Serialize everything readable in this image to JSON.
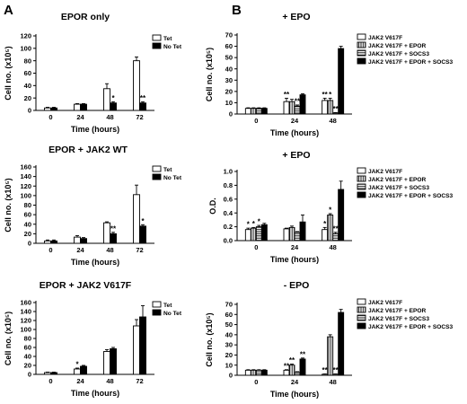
{
  "panels": [
    {
      "letter": "A"
    },
    {
      "letter": "B"
    }
  ],
  "chart_data": [
    {
      "type": "bar",
      "title": "EPOR only",
      "xlabel": "Time (hours)",
      "ylabel": "Cell no. (x10⁵)",
      "categories": [
        "0",
        "24",
        "48",
        "72"
      ],
      "ylim": [
        0,
        120
      ],
      "yticks": [
        0,
        20,
        40,
        60,
        80,
        100,
        120
      ],
      "legend_position": "top-right",
      "series": [
        {
          "name": "Tet",
          "values": [
            4,
            10,
            35,
            80
          ],
          "errors": [
            1,
            1,
            8,
            6
          ],
          "significance": [
            "",
            "",
            "",
            ""
          ]
        },
        {
          "name": "No Tet",
          "values": [
            4,
            10,
            12,
            12
          ],
          "errors": [
            1,
            1,
            2,
            2
          ],
          "significance": [
            "",
            "",
            "*",
            "**"
          ]
        }
      ]
    },
    {
      "type": "bar",
      "title": "EPOR + JAK2 WT",
      "xlabel": "Time (hours)",
      "ylabel": "Cell no. (x10⁵)",
      "categories": [
        "0",
        "24",
        "48",
        "72"
      ],
      "ylim": [
        0,
        160
      ],
      "yticks": [
        0,
        20,
        40,
        60,
        80,
        100,
        120,
        140,
        160
      ],
      "legend_position": "top-right",
      "series": [
        {
          "name": "Tet",
          "values": [
            5,
            13,
            43,
            102
          ],
          "errors": [
            2,
            3,
            2,
            20
          ],
          "significance": [
            "",
            "",
            "",
            ""
          ]
        },
        {
          "name": "No Tet",
          "values": [
            5,
            10,
            20,
            36
          ],
          "errors": [
            2,
            2,
            3,
            3
          ],
          "significance": [
            "",
            "",
            "**",
            "*"
          ]
        }
      ]
    },
    {
      "type": "bar",
      "title": "EPOR + JAK2 V617F",
      "xlabel": "Time (hours)",
      "ylabel": "Cell no. (x10⁵)",
      "categories": [
        "0",
        "24",
        "48",
        "72"
      ],
      "ylim": [
        0,
        160
      ],
      "yticks": [
        0,
        20,
        40,
        60,
        80,
        100,
        120,
        140,
        160
      ],
      "legend_position": "top-right",
      "series": [
        {
          "name": "Tet",
          "values": [
            4,
            12,
            51,
            108
          ],
          "errors": [
            1,
            2,
            4,
            14
          ],
          "significance": [
            "",
            "*",
            "",
            ""
          ]
        },
        {
          "name": "No Tet",
          "values": [
            4,
            18,
            57,
            128
          ],
          "errors": [
            1,
            2,
            3,
            25
          ],
          "significance": [
            "",
            "",
            "",
            ""
          ]
        }
      ]
    },
    {
      "type": "bar",
      "title": "+ EPO",
      "xlabel": "Time (hours)",
      "ylabel": "Cell no. (x10⁵)",
      "categories": [
        "0",
        "24",
        "48"
      ],
      "ylim": [
        0,
        70
      ],
      "yticks": [
        0,
        10,
        20,
        30,
        40,
        50,
        60,
        70
      ],
      "legend_position": "top-right",
      "series": [
        {
          "name": "JAK2 V617F",
          "values": [
            5,
            11,
            12
          ],
          "errors": [
            0.5,
            3,
            2
          ],
          "significance": [
            "",
            "**",
            "**"
          ]
        },
        {
          "name": "JAK2 V617F + EPOR",
          "values": [
            5,
            11,
            12
          ],
          "errors": [
            0.5,
            2,
            2
          ],
          "significance": [
            "",
            "",
            "*"
          ]
        },
        {
          "name": "JAK2 V617F + SOCS3",
          "values": [
            5,
            7,
            1
          ],
          "errors": [
            0.5,
            1,
            0.3
          ],
          "significance": [
            "",
            "**",
            "**"
          ]
        },
        {
          "name": "JAK2 V617F + EPOR + SOCS3",
          "values": [
            5,
            17,
            58
          ],
          "errors": [
            0.5,
            1,
            2
          ],
          "significance": [
            "",
            "",
            ""
          ]
        }
      ]
    },
    {
      "type": "bar",
      "title": "+ EPO",
      "xlabel": "Time (hours)",
      "ylabel": "O.D.",
      "categories": [
        "0",
        "24",
        "48"
      ],
      "ylim": [
        0,
        1.0
      ],
      "yticks": [
        0.0,
        0.2,
        0.4,
        0.6,
        0.8,
        1.0
      ],
      "yticklabels": [
        "0.0",
        "0.2",
        "0.4",
        "0.6",
        "0.8",
        "1.0"
      ],
      "legend_position": "top-right",
      "series": [
        {
          "name": "JAK2 V617F",
          "values": [
            0.16,
            0.17,
            0.16
          ],
          "errors": [
            0.02,
            0.01,
            0.03
          ],
          "significance": [
            "*",
            "",
            "*"
          ]
        },
        {
          "name": "JAK2 V617F + EPOR",
          "values": [
            0.18,
            0.19,
            0.37
          ],
          "errors": [
            0.01,
            0.02,
            0.02
          ],
          "significance": [
            "*",
            "",
            "*"
          ]
        },
        {
          "name": "JAK2 V617F + SOCS3",
          "values": [
            0.2,
            0.12,
            0.1
          ],
          "errors": [
            0.02,
            0.01,
            0.02
          ],
          "significance": [
            "*",
            "",
            "**"
          ]
        },
        {
          "name": "JAK2 V617F + EPOR + SOCS3",
          "values": [
            0.23,
            0.27,
            0.74
          ],
          "errors": [
            0.02,
            0.1,
            0.12
          ],
          "significance": [
            "",
            "",
            ""
          ]
        }
      ]
    },
    {
      "type": "bar",
      "title": "- EPO",
      "xlabel": "Time (hours)",
      "ylabel": "Cell no. (x10⁵)",
      "categories": [
        "0",
        "24",
        "48"
      ],
      "ylim": [
        0,
        70
      ],
      "yticks": [
        0,
        10,
        20,
        30,
        40,
        50,
        60,
        70
      ],
      "legend_position": "top-right",
      "series": [
        {
          "name": "JAK2 V617F",
          "values": [
            5,
            5,
            1
          ],
          "errors": [
            0.5,
            0.5,
            0.3
          ],
          "significance": [
            "",
            "**",
            "**"
          ]
        },
        {
          "name": "JAK2 V617F + EPOR",
          "values": [
            5,
            10,
            38
          ],
          "errors": [
            0.5,
            1,
            2
          ],
          "significance": [
            "",
            "**",
            ""
          ]
        },
        {
          "name": "JAK2 V617F + SOCS3",
          "values": [
            5,
            3,
            1
          ],
          "errors": [
            0.5,
            0.5,
            0.3
          ],
          "significance": [
            "",
            "",
            "**"
          ]
        },
        {
          "name": "JAK2 V617F + EPOR + SOCS3",
          "values": [
            5,
            16,
            62
          ],
          "errors": [
            0.5,
            1,
            3
          ],
          "significance": [
            "",
            "**",
            ""
          ]
        }
      ]
    }
  ]
}
